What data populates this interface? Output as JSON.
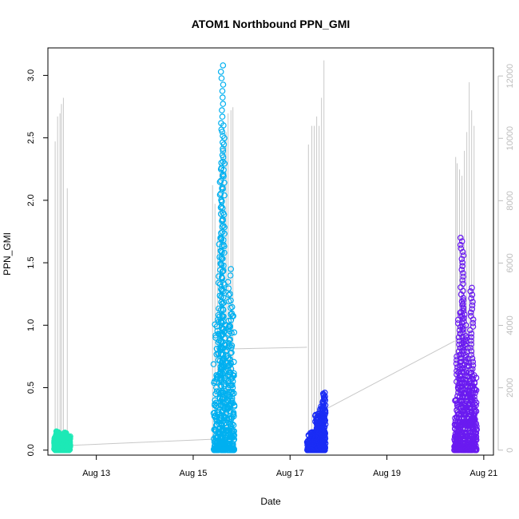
{
  "chart_data": {
    "type": "scatter",
    "title": "ATOM1 Northbound PPN_GMI",
    "xlabel": "Date",
    "ylabel": "PPN_GMI",
    "x_ticks": [
      "Aug 13",
      "Aug 15",
      "Aug 17",
      "Aug 19",
      "Aug 21"
    ],
    "x_tick_days": [
      13,
      15,
      17,
      19,
      21
    ],
    "xlim": [
      12.0,
      21.2
    ],
    "y_ticks": [
      "0.0",
      "0.5",
      "1.0",
      "1.5",
      "2.0",
      "2.5",
      "3.0"
    ],
    "y_tick_values": [
      0,
      0.5,
      1.0,
      1.5,
      2.0,
      2.5,
      3.0
    ],
    "ylim": [
      -0.04,
      3.22
    ],
    "y2_ticks": [
      "0",
      "2000",
      "4000",
      "6000",
      "8000",
      "10000",
      "12000"
    ],
    "y2_tick_values": [
      0,
      2000,
      4000,
      6000,
      8000,
      10000,
      12000
    ],
    "y2lim": [
      -160,
      12900
    ],
    "grid": false,
    "legend": "none",
    "series": [
      {
        "color": "#1de9b6",
        "x_range": [
          12.15,
          12.45
        ],
        "points": [
          [
            12.16,
            0.1
          ],
          [
            12.2,
            0.15
          ],
          [
            12.25,
            0.12
          ],
          [
            12.3,
            0.08
          ],
          [
            12.35,
            0.14
          ],
          [
            12.4,
            0.05
          ],
          [
            12.43,
            0.11
          ]
        ],
        "max": 0.15
      },
      {
        "color": "#00b0f0",
        "x_range": [
          15.42,
          15.85
        ],
        "points": [
          [
            15.45,
            0.6
          ],
          [
            15.5,
            0.3
          ],
          [
            15.55,
            1.7
          ],
          [
            15.58,
            2.3
          ],
          [
            15.6,
            3.08
          ],
          [
            15.62,
            2.6
          ],
          [
            15.65,
            1.0
          ],
          [
            15.7,
            0.8
          ],
          [
            15.75,
            1.45
          ],
          [
            15.78,
            1.25
          ],
          [
            15.82,
            0.6
          ]
        ],
        "max": 3.08
      },
      {
        "color": "#1a2cf5",
        "x_range": [
          17.35,
          17.72
        ],
        "points": [
          [
            17.38,
            0.05
          ],
          [
            17.45,
            0.03
          ],
          [
            17.5,
            0.1
          ],
          [
            17.55,
            0.29
          ],
          [
            17.6,
            0.2
          ],
          [
            17.65,
            0.35
          ],
          [
            17.7,
            0.46
          ]
        ],
        "max": 0.46
      },
      {
        "color": "#6a1bf0",
        "x_range": [
          20.4,
          20.85
        ],
        "points": [
          [
            20.42,
            0.2
          ],
          [
            20.45,
            0.75
          ],
          [
            20.5,
            1.1
          ],
          [
            20.55,
            1.7
          ],
          [
            20.6,
            1.2
          ],
          [
            20.65,
            0.9
          ],
          [
            20.7,
            0.7
          ],
          [
            20.75,
            1.3
          ],
          [
            20.8,
            0.6
          ],
          [
            20.83,
            0.3
          ]
        ],
        "max": 1.7
      }
    ],
    "secondary_series": {
      "color": "#c8c8c8",
      "type": "line",
      "spikes": [
        [
          12.15,
          9900
        ],
        [
          12.2,
          10700
        ],
        [
          12.25,
          10800
        ],
        [
          12.28,
          11100
        ],
        [
          12.32,
          11300
        ],
        [
          12.4,
          8400
        ],
        [
          15.4,
          8500
        ],
        [
          15.45,
          7900
        ],
        [
          15.5,
          6800
        ],
        [
          15.55,
          9200
        ],
        [
          15.62,
          9800
        ],
        [
          15.68,
          10200
        ],
        [
          15.72,
          10800
        ],
        [
          15.78,
          10900
        ],
        [
          15.82,
          11000
        ],
        [
          17.38,
          9800
        ],
        [
          17.45,
          10400
        ],
        [
          17.5,
          10400
        ],
        [
          17.55,
          10700
        ],
        [
          17.6,
          10400
        ],
        [
          17.65,
          11300
        ],
        [
          17.7,
          12500
        ],
        [
          20.42,
          9400
        ],
        [
          20.45,
          9200
        ],
        [
          20.5,
          9000
        ],
        [
          20.55,
          8800
        ],
        [
          20.6,
          9600
        ],
        [
          20.65,
          10200
        ],
        [
          20.7,
          11800
        ],
        [
          20.75,
          10900
        ],
        [
          20.8,
          10400
        ]
      ],
      "connectors": [
        [
          [
            12.45,
            150
          ],
          [
            15.42,
            350
          ]
        ],
        [
          [
            15.85,
            3250
          ],
          [
            17.35,
            3300
          ]
        ],
        [
          [
            17.72,
            1300
          ],
          [
            20.4,
            3500
          ]
        ]
      ]
    }
  }
}
